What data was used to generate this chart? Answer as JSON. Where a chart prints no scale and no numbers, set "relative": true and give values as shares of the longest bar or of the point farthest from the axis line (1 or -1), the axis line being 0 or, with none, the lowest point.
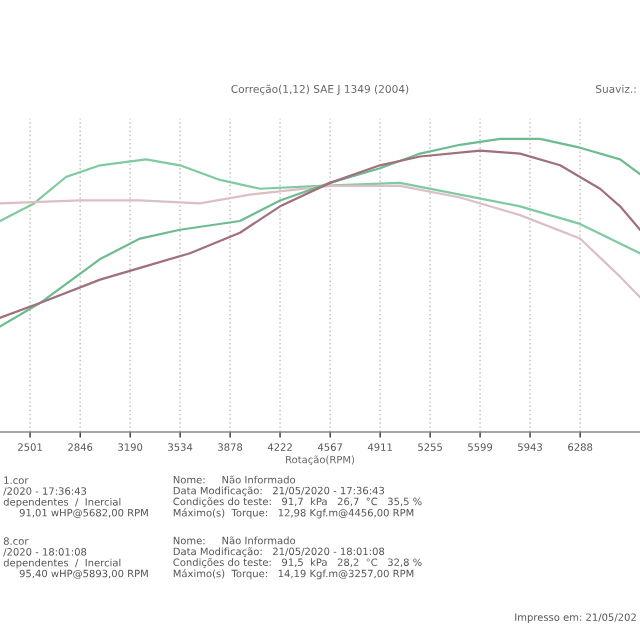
{
  "chart_data": {
    "type": "line",
    "title": "Correção(1,12) SAE J 1349 (2004)",
    "xlabel": "Rotação(RPM)",
    "relative": true,
    "grid": true,
    "legend": false,
    "xlim": [
      2294,
      6700
    ],
    "xticks": [
      2501,
      2846,
      3190,
      3534,
      3878,
      4222,
      4567,
      4911,
      5255,
      5599,
      5943,
      6288
    ],
    "series": [
      {
        "color": "#7fcaa0",
        "x": [
          2294,
          2528,
          2748,
          2983,
          3299,
          3533,
          3809,
          4084,
          4497,
          5048,
          5461,
          5874,
          6287,
          6700
        ],
        "values": [
          0.72,
          0.78,
          0.87,
          0.91,
          0.93,
          0.91,
          0.86,
          0.83,
          0.84,
          0.85,
          0.81,
          0.77,
          0.71,
          0.61
        ]
      },
      {
        "color": "#dcbfc4",
        "x": [
          2294,
          2845,
          3258,
          3671,
          4015,
          4566,
          5048,
          5461,
          5874,
          6287,
          6563,
          6700
        ],
        "values": [
          0.78,
          0.79,
          0.79,
          0.78,
          0.81,
          0.84,
          0.84,
          0.8,
          0.74,
          0.66,
          0.53,
          0.46
        ]
      },
      {
        "color": "#6fbb90",
        "x": [
          2294,
          2569,
          2983,
          3258,
          3533,
          3946,
          4222,
          4566,
          4910,
          5186,
          5461,
          5737,
          6012,
          6287,
          6563,
          6700
        ],
        "values": [
          0.36,
          0.44,
          0.59,
          0.66,
          0.69,
          0.72,
          0.79,
          0.85,
          0.9,
          0.95,
          0.98,
          1.0,
          1.0,
          0.97,
          0.93,
          0.88
        ]
      },
      {
        "color": "#a0707c",
        "x": [
          2294,
          2569,
          2983,
          3258,
          3602,
          3946,
          4222,
          4566,
          4910,
          5186,
          5599,
          5874,
          6150,
          6425,
          6563,
          6700
        ],
        "values": [
          0.39,
          0.44,
          0.52,
          0.56,
          0.61,
          0.68,
          0.77,
          0.85,
          0.91,
          0.94,
          0.96,
          0.95,
          0.91,
          0.83,
          0.77,
          0.69
        ]
      }
    ],
    "annotations": [
      "Suaviz.:",
      "1.cor\n/2020 - 17:36:43\ndependentes  /  Inercial\n     91,01 wHP@5682,00 RPM",
      "Nome:     Não Informado\nData Modificação:   21/05/2020 - 17:36:43\nCondições do teste:   91,7  kPa   26,7  °C   35,5 %\nMáximo(s)  Torque:   12,98 Kgf.m@4456,00 RPM",
      "8.cor\n/2020 - 18:01:08\ndependentes  /  Inercial\n     95,40 wHP@5893,00 RPM",
      "Nome:     Não Informado\nData Modificação:   21/05/2020 - 18:01:08\nCondições do teste:   91,5  kPa   28,2  °C   32,8 %\nMáximo(s)  Torque:   14,19 Kgf.m@3257,00 RPM",
      "Impresso em: 21/05/202"
    ]
  }
}
